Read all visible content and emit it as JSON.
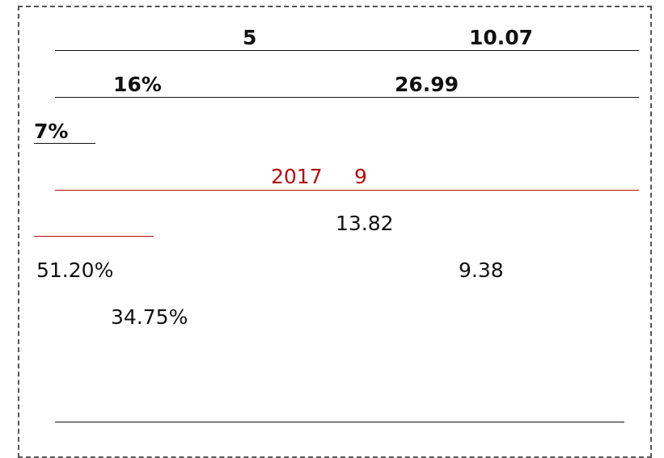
{
  "rows": [
    [
      "5",
      "10.07"
    ],
    [
      "16%",
      "26.99"
    ],
    [
      "7%"
    ],
    [
      "2017",
      "9"
    ],
    [
      "13.82"
    ],
    [
      "51.20%",
      "9.38"
    ],
    [
      "34.75%"
    ]
  ]
}
